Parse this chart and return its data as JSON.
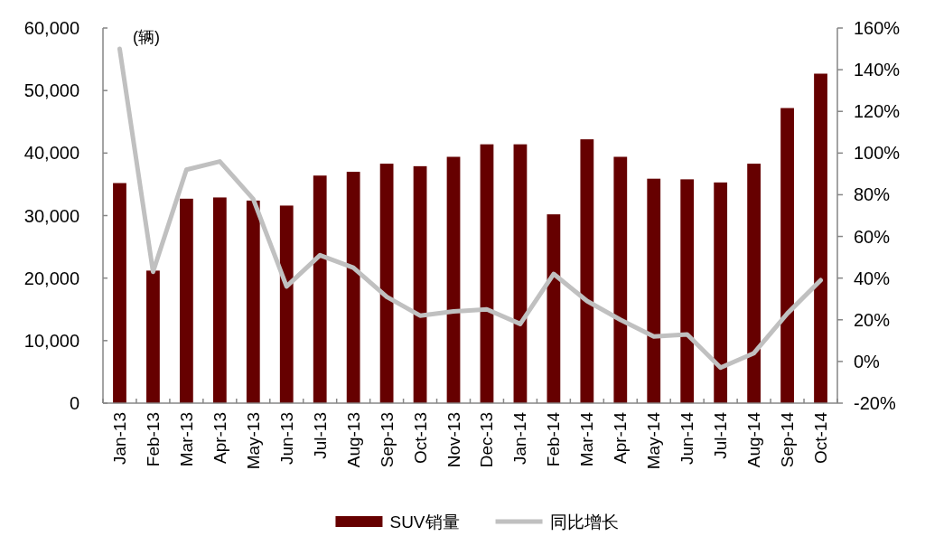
{
  "chart_data": {
    "type": "bar",
    "ylabel": "(辆)",
    "categories": [
      "Jan-13",
      "Feb-13",
      "Mar-13",
      "Apr-13",
      "May-13",
      "Jun-13",
      "Jul-13",
      "Aug-13",
      "Sep-13",
      "Oct-13",
      "Nov-13",
      "Dec-13",
      "Jan-14",
      "Feb-14",
      "Mar-14",
      "Apr-14",
      "May-14",
      "Jun-14",
      "Jul-14",
      "Aug-14",
      "Sep-14",
      "Oct-14"
    ],
    "series": [
      {
        "name": "SUV销量",
        "color": "#660000",
        "values": [
          35200,
          21200,
          32700,
          32900,
          32400,
          31600,
          36400,
          37000,
          38300,
          37900,
          39400,
          41400,
          41400,
          30200,
          42200,
          39400,
          35900,
          35800,
          35300,
          38300,
          47200,
          52700
        ]
      },
      {
        "name": "同比增长",
        "type": "line",
        "axis": "y2",
        "color": "#c0c0c0",
        "values": [
          150,
          43,
          92,
          96,
          78,
          36,
          51,
          45,
          31,
          22,
          24,
          25,
          18,
          42,
          29,
          20,
          12,
          13,
          -3,
          4,
          23,
          39
        ]
      }
    ],
    "ylim": [
      0,
      60000
    ],
    "yticks": [
      {
        "value": 0,
        "label": "0"
      },
      {
        "value": 10000,
        "label": "10,000"
      },
      {
        "value": 20000,
        "label": "20,000"
      },
      {
        "value": 30000,
        "label": "30,000"
      },
      {
        "value": 40000,
        "label": "40,000"
      },
      {
        "value": 50000,
        "label": "50,000"
      },
      {
        "value": 60000,
        "label": "60,000"
      }
    ],
    "y2lim": [
      -20,
      160
    ],
    "y2ticks": [
      {
        "value": -20,
        "label": "-20%"
      },
      {
        "value": 0,
        "label": "0%"
      },
      {
        "value": 20,
        "label": "20%"
      },
      {
        "value": 40,
        "label": "40%"
      },
      {
        "value": 60,
        "label": "60%"
      },
      {
        "value": 80,
        "label": "80%"
      },
      {
        "value": 100,
        "label": "100%"
      },
      {
        "value": 120,
        "label": "120%"
      },
      {
        "value": 140,
        "label": "140%"
      },
      {
        "value": 160,
        "label": "160%"
      }
    ],
    "legend": "bottom",
    "line_style": "solid"
  }
}
